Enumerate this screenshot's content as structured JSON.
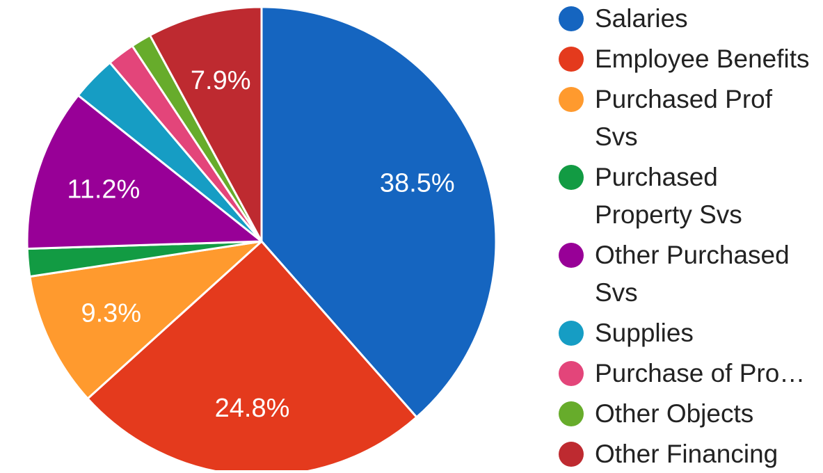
{
  "chart_data": {
    "type": "pie",
    "slices": [
      {
        "label": "Salaries",
        "value": 38.5,
        "display": "38.5%",
        "color": "#1565C0"
      },
      {
        "label": "Employee Benefits",
        "value": 24.8,
        "display": "24.8%",
        "color": "#E43A1D"
      },
      {
        "label": "Purchased Prof Svs",
        "value": 9.3,
        "display": "9.3%",
        "color": "#FF9A2E"
      },
      {
        "label": "Purchased Property Svs",
        "value": 1.9,
        "display": "",
        "color": "#129B43"
      },
      {
        "label": "Other Purchased Svs",
        "value": 11.2,
        "display": "11.2%",
        "color": "#980097"
      },
      {
        "label": "Supplies",
        "value": 3.1,
        "display": "",
        "color": "#169DC4"
      },
      {
        "label": "Purchase of Pro…",
        "value": 1.9,
        "display": "",
        "color": "#E3457A"
      },
      {
        "label": "Other Objects",
        "value": 1.4,
        "display": "",
        "color": "#67AC2B"
      },
      {
        "label": "Other Financing",
        "value": 7.9,
        "display": "7.9%",
        "color": "#BE2A30"
      }
    ],
    "legend": {
      "position": "right",
      "items": [
        {
          "lines": [
            "Salaries"
          ],
          "color": "#1565C0"
        },
        {
          "lines": [
            "Employee Benefits"
          ],
          "color": "#E43A1D"
        },
        {
          "lines": [
            "Purchased Prof",
            "Svs"
          ],
          "color": "#FF9A2E"
        },
        {
          "lines": [
            "Purchased",
            "Property Svs"
          ],
          "color": "#129B43"
        },
        {
          "lines": [
            "Other Purchased",
            "Svs"
          ],
          "color": "#980097"
        },
        {
          "lines": [
            "Supplies"
          ],
          "color": "#169DC4"
        },
        {
          "lines": [
            "Purchase of Pro…"
          ],
          "color": "#E3457A"
        },
        {
          "lines": [
            "Other Objects"
          ],
          "color": "#67AC2B"
        },
        {
          "lines": [
            "Other Financing"
          ],
          "color": "#BE2A30"
        }
      ]
    }
  }
}
